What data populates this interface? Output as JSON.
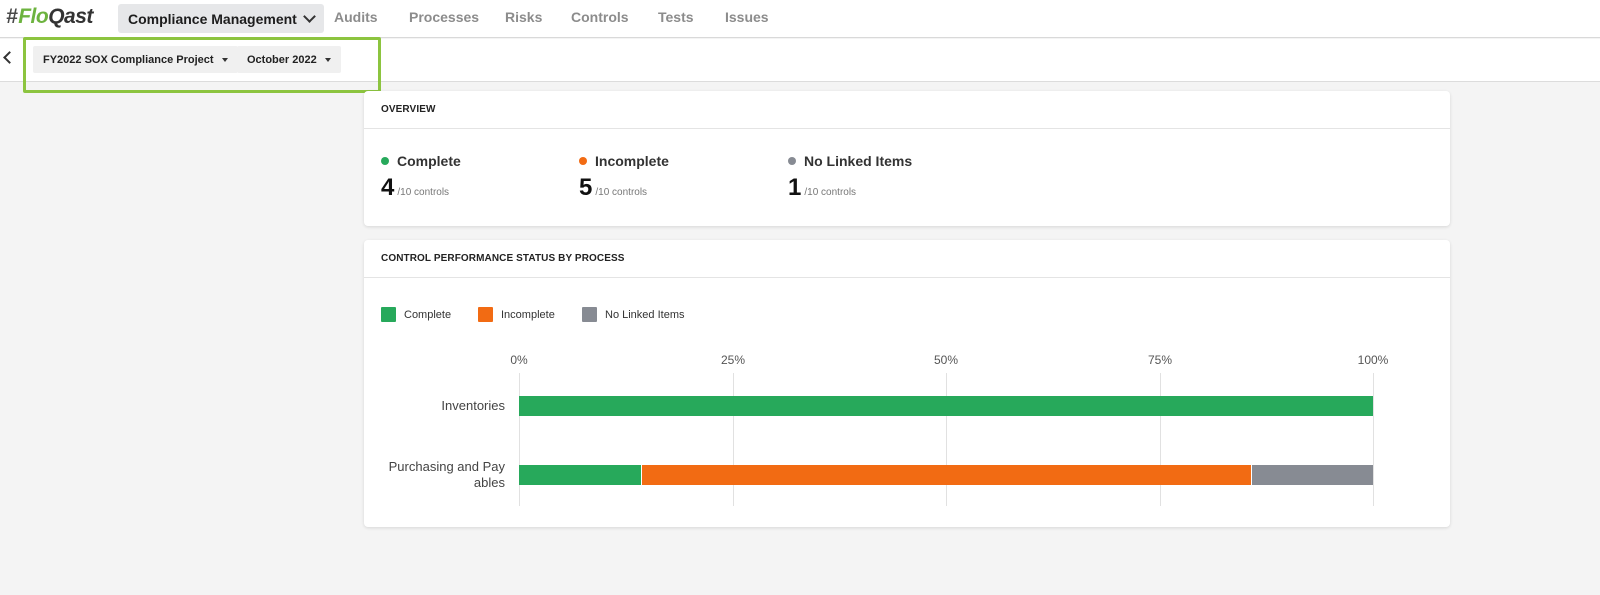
{
  "brand": {
    "hash": "#",
    "name_a": "Flo",
    "name_b": "Qast"
  },
  "nav": {
    "primary": "Compliance Management",
    "links": [
      "Audits",
      "Processes",
      "Risks",
      "Controls",
      "Tests",
      "Issues"
    ]
  },
  "filters": {
    "project": "FY2022 SOX Compliance Project",
    "period": "October 2022"
  },
  "overview": {
    "title": "OVERVIEW",
    "stats": [
      {
        "label": "Complete",
        "count": "4",
        "total": "/10 controls",
        "color": "#27a95b"
      },
      {
        "label": "Incomplete",
        "count": "5",
        "total": "/10 controls",
        "color": "#f26b13"
      },
      {
        "label": "No Linked Items",
        "count": "1",
        "total": "/10 controls",
        "color": "#878b93"
      }
    ]
  },
  "performance": {
    "title": "CONTROL PERFORMANCE STATUS BY PROCESS"
  },
  "colors": {
    "complete": "#27a95b",
    "incomplete": "#f26b13",
    "none": "#878b93",
    "highlight": "#8cc43f"
  },
  "chart_data": {
    "type": "bar",
    "orientation": "horizontal",
    "stacked": true,
    "categories": [
      "Inventories",
      "Purchasing and Payables"
    ],
    "category_labels": [
      [
        "Inventories"
      ],
      [
        "Purchasing and Pay",
        "ables"
      ]
    ],
    "series": [
      {
        "name": "Complete",
        "values": [
          100,
          14.3
        ],
        "color": "#27a95b"
      },
      {
        "name": "Incomplete",
        "values": [
          0,
          71.4
        ],
        "color": "#f26b13"
      },
      {
        "name": "No Linked Items",
        "values": [
          0,
          14.3
        ],
        "color": "#878b93"
      }
    ],
    "xlim": [
      0,
      100
    ],
    "xticks": [
      "0%",
      "25%",
      "50%",
      "75%",
      "100%"
    ],
    "xtick_values": [
      0,
      25,
      50,
      75,
      100
    ],
    "grid": true,
    "legend": "top-left"
  }
}
